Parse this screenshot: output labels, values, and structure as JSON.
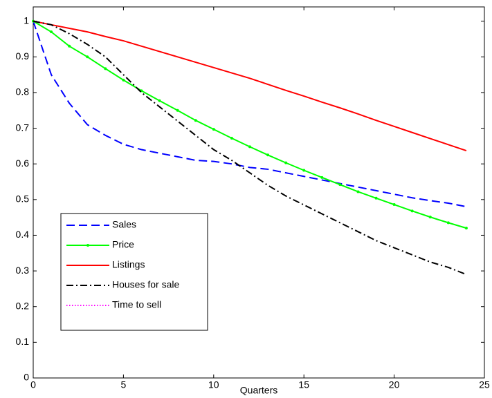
{
  "chart_data": {
    "type": "line",
    "xlabel": "Quarters",
    "x": [
      0,
      1,
      2,
      3,
      4,
      5,
      6,
      7,
      8,
      9,
      10,
      11,
      12,
      13,
      14,
      15,
      16,
      17,
      18,
      19,
      20,
      21,
      22,
      23,
      24
    ],
    "series": [
      {
        "name": "Sales",
        "color": "#0000ff",
        "style": "dashed",
        "values": [
          1,
          0.85,
          0.77,
          0.71,
          0.68,
          0.655,
          0.64,
          0.63,
          0.62,
          0.61,
          0.607,
          0.6,
          0.59,
          0.585,
          0.575,
          0.565,
          0.555,
          0.545,
          0.535,
          0.525,
          0.515,
          0.505,
          0.497,
          0.49,
          0.48
        ]
      },
      {
        "name": "Price",
        "color": "#00ff00",
        "style": "solid",
        "marker": true,
        "values": [
          1,
          0.97,
          0.93,
          0.9,
          0.867,
          0.835,
          0.805,
          0.777,
          0.75,
          0.722,
          0.697,
          0.672,
          0.648,
          0.625,
          0.603,
          0.582,
          0.562,
          0.542,
          0.522,
          0.504,
          0.486,
          0.468,
          0.451,
          0.435,
          0.42
        ]
      },
      {
        "name": "Listings",
        "color": "#ff0000",
        "style": "solid",
        "values": [
          1,
          0.99,
          0.98,
          0.97,
          0.957,
          0.945,
          0.93,
          0.915,
          0.9,
          0.885,
          0.87,
          0.855,
          0.84,
          0.823,
          0.806,
          0.79,
          0.773,
          0.757,
          0.74,
          0.722,
          0.705,
          0.688,
          0.671,
          0.654,
          0.637
        ]
      },
      {
        "name": "Houses for sale",
        "color": "#000000",
        "style": "dashdot",
        "values": [
          1,
          0.99,
          0.965,
          0.935,
          0.9,
          0.85,
          0.8,
          0.76,
          0.72,
          0.68,
          0.64,
          0.61,
          0.575,
          0.54,
          0.51,
          0.485,
          0.46,
          0.435,
          0.41,
          0.385,
          0.365,
          0.345,
          0.325,
          0.31,
          0.29
        ]
      },
      {
        "name": "Time to sell",
        "color": "#ff00ff",
        "style": "dotted",
        "values": [
          null,
          null,
          null,
          null,
          null,
          null,
          null,
          null,
          null,
          null,
          null,
          null,
          null,
          null,
          null,
          null,
          null,
          null,
          null,
          null,
          null,
          null,
          null,
          null,
          null
        ]
      }
    ],
    "xlim": [
      0,
      25
    ],
    "xticks": [
      0,
      5,
      10,
      15,
      20,
      25
    ],
    "ylim": [
      0,
      1.04
    ],
    "yticks": [
      0,
      0.1,
      0.2,
      0.3,
      0.4,
      0.5,
      0.6,
      0.7,
      0.8,
      0.9,
      1
    ],
    "legend": "lower left"
  }
}
